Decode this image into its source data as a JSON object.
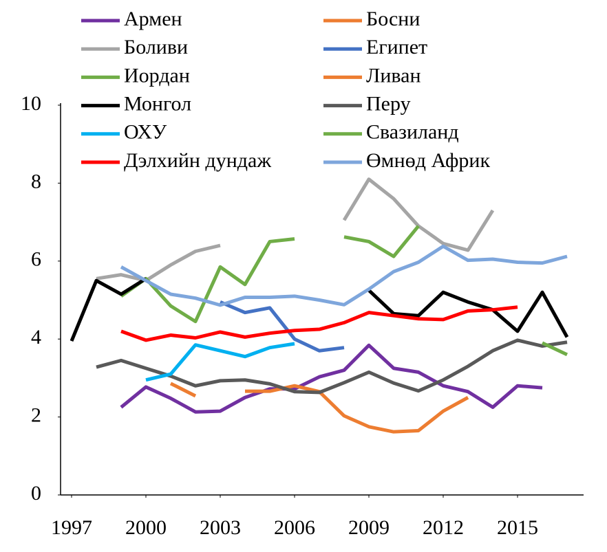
{
  "chart_data": {
    "type": "line",
    "x": [
      1997,
      1998,
      1999,
      2000,
      2001,
      2002,
      2003,
      2004,
      2005,
      2006,
      2007,
      2008,
      2009,
      2010,
      2011,
      2012,
      2013,
      2014,
      2015,
      2016,
      2017
    ],
    "xlim": [
      1996.5,
      2017.5
    ],
    "xticks": [
      1997,
      2000,
      2003,
      2006,
      2009,
      2012,
      2015
    ],
    "ylim": [
      0,
      10
    ],
    "yticks": [
      0,
      2,
      4,
      6,
      8,
      10
    ],
    "series": [
      {
        "name": "Армен",
        "color": "#7030a0",
        "values": [
          null,
          null,
          2.25,
          2.77,
          2.48,
          2.13,
          2.15,
          2.5,
          2.72,
          2.72,
          3.03,
          3.2,
          3.84,
          3.25,
          3.15,
          2.8,
          2.65,
          2.25,
          2.8,
          2.75,
          null
        ]
      },
      {
        "name": "Босни",
        "color": "#ed7d31",
        "values": [
          null,
          null,
          null,
          null,
          2.86,
          2.54,
          null,
          null,
          null,
          null,
          null,
          null,
          null,
          null,
          null,
          null,
          null,
          null,
          null,
          null,
          null
        ]
      },
      {
        "name": "Боливи",
        "color": "#a5a5a5",
        "values": [
          null,
          5.55,
          5.65,
          5.5,
          5.9,
          6.25,
          6.4,
          null,
          null,
          null,
          null,
          7.05,
          8.1,
          7.6,
          6.9,
          6.45,
          6.28,
          7.3,
          null,
          null,
          null
        ]
      },
      {
        "name": "Египет",
        "color": "#4472c4",
        "values": [
          null,
          null,
          null,
          null,
          null,
          null,
          4.95,
          4.68,
          4.8,
          4.0,
          3.7,
          3.78,
          null,
          null,
          null,
          null,
          null,
          null,
          null,
          null,
          null
        ]
      },
      {
        "name": "Иордан",
        "color": "#70ad47",
        "values": [
          null,
          null,
          5.1,
          5.55,
          4.85,
          4.45,
          5.85,
          5.4,
          6.5,
          6.57,
          null,
          6.62,
          6.5,
          6.12,
          6.9,
          null,
          null,
          null,
          null,
          null,
          null
        ]
      },
      {
        "name": "Ливан",
        "color": "#ed7d31",
        "values": [
          null,
          null,
          null,
          null,
          null,
          null,
          null,
          2.66,
          2.66,
          2.8,
          2.65,
          2.03,
          1.75,
          1.62,
          1.65,
          2.15,
          2.5,
          null,
          null,
          null,
          null
        ]
      },
      {
        "name": "Монгол",
        "color": "#000000",
        "values": [
          3.95,
          5.5,
          5.15,
          5.55,
          null,
          null,
          null,
          null,
          null,
          null,
          null,
          null,
          5.25,
          4.65,
          4.6,
          5.2,
          4.95,
          4.75,
          4.2,
          5.2,
          4.05
        ]
      },
      {
        "name": "Перу",
        "color": "#595959",
        "values": [
          null,
          3.28,
          3.45,
          3.25,
          3.05,
          2.8,
          2.93,
          2.95,
          2.85,
          2.65,
          2.63,
          2.88,
          3.15,
          2.87,
          2.67,
          2.95,
          3.3,
          3.7,
          3.97,
          3.82,
          3.92
        ]
      },
      {
        "name": "ОХУ",
        "color": "#00b0f0",
        "values": [
          null,
          null,
          null,
          2.95,
          3.1,
          3.85,
          3.7,
          3.55,
          3.78,
          3.88,
          null,
          null,
          null,
          null,
          null,
          null,
          null,
          null,
          null,
          null,
          null
        ]
      },
      {
        "name": "Свазиланд",
        "color": "#70ad47",
        "values": [
          null,
          null,
          null,
          null,
          null,
          null,
          null,
          null,
          null,
          null,
          null,
          null,
          null,
          null,
          null,
          null,
          null,
          null,
          null,
          3.9,
          3.6
        ]
      },
      {
        "name": "Дэлхийн дундаж",
        "color": "#ff0000",
        "values": [
          null,
          null,
          4.2,
          3.97,
          4.1,
          4.03,
          4.18,
          4.05,
          4.15,
          4.22,
          4.25,
          4.42,
          4.68,
          4.6,
          4.52,
          4.5,
          4.72,
          4.75,
          4.82,
          null,
          null
        ]
      },
      {
        "name": "Өмнөд Африк",
        "color": "#7ea6dc",
        "values": [
          null,
          null,
          5.85,
          5.5,
          5.15,
          5.05,
          4.87,
          5.07,
          5.07,
          5.1,
          5.0,
          4.88,
          5.28,
          5.73,
          5.97,
          6.38,
          6.02,
          6.05,
          5.97,
          5.95,
          6.12
        ]
      }
    ]
  }
}
